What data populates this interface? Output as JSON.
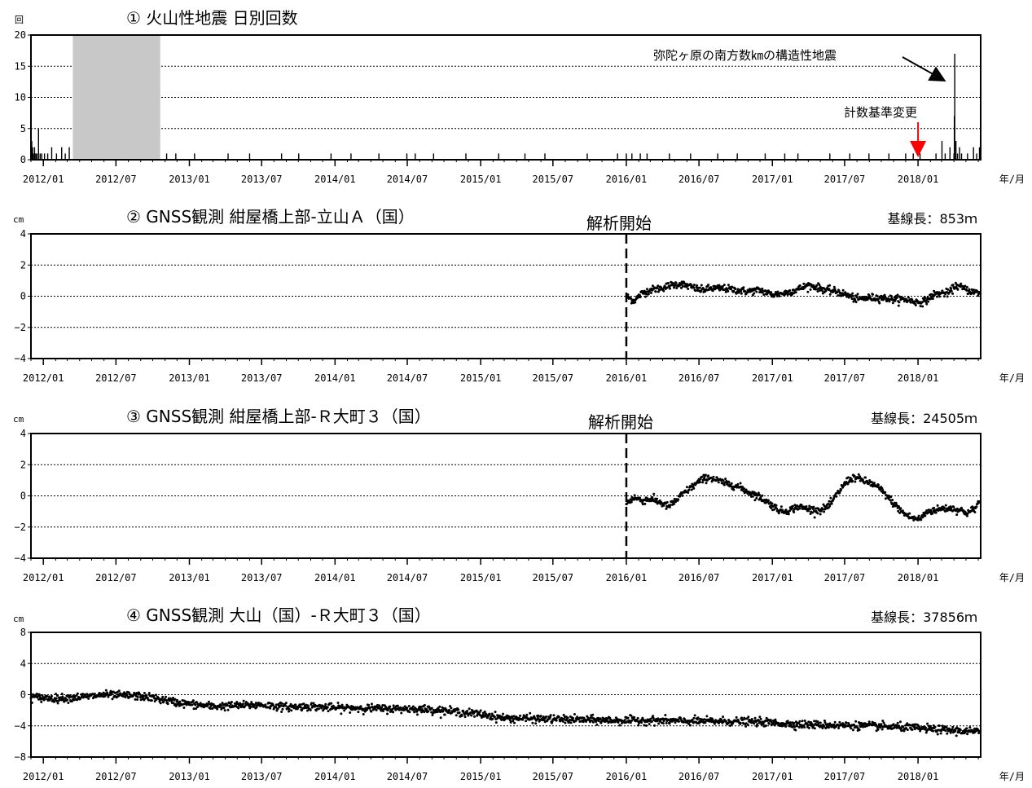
{
  "x_axis_ticks": [
    "2012/01",
    "2012/07",
    "2013/01",
    "2013/07",
    "2014/01",
    "2014/07",
    "2015/01",
    "2015/07",
    "2016/01",
    "2016/07",
    "2017/01",
    "2017/07",
    "2018/01"
  ],
  "x_unit": "年/月",
  "colors": {
    "gap_fill": "#c8c8c8",
    "arrow_red": "#ff0000",
    "ink": "#000000"
  },
  "chart_data": [
    {
      "type": "bar",
      "title": "① 火山性地震 日別回数",
      "ylabel": "回",
      "ylim": [
        0,
        20
      ],
      "yticks": [
        "20",
        "15",
        "10",
        "5",
        "0"
      ],
      "xlim": [
        "2011-12-01",
        "2018-06-07"
      ],
      "grid": true,
      "data_gap": [
        "2012-03-15",
        "2012-10-20"
      ],
      "series": [
        {
          "x": [
            "2011-12-03",
            "2011-12-05",
            "2011-12-07",
            "2011-12-10",
            "2011-12-13",
            "2011-12-16",
            "2011-12-20",
            "2011-12-24",
            "2011-12-28",
            "2012-01-04",
            "2012-01-12",
            "2012-01-22",
            "2012-02-03",
            "2012-02-16",
            "2012-02-25",
            "2012-03-06",
            "2012-11-05",
            "2012-11-28",
            "2013-01-14",
            "2013-04-08",
            "2013-06-01",
            "2013-08-20",
            "2013-10-02",
            "2013-12-22",
            "2014-02-10",
            "2014-04-21",
            "2014-06-30",
            "2014-07-21",
            "2014-09-05",
            "2014-11-25",
            "2015-02-15",
            "2015-04-22",
            "2015-06-11",
            "2015-09-25",
            "2015-12-10",
            "2016-01-01",
            "2016-01-15",
            "2016-02-05",
            "2016-02-22",
            "2016-04-18",
            "2016-06-10",
            "2016-08-17",
            "2016-10-05",
            "2016-12-14",
            "2017-02-01",
            "2017-03-06",
            "2017-05-25",
            "2017-07-14",
            "2017-08-31",
            "2017-10-20",
            "2017-12-01",
            "2017-12-20",
            "2018-01-06",
            "2018-02-15",
            "2018-03-02",
            "2018-03-10",
            "2018-03-22",
            "2018-04-01",
            "2018-04-02",
            "2018-04-03",
            "2018-04-06",
            "2018-04-10",
            "2018-04-15",
            "2018-04-20",
            "2018-05-05",
            "2018-05-20",
            "2018-05-28",
            "2018-06-04"
          ],
          "values": [
            3,
            2,
            1,
            2,
            1,
            1,
            5,
            1,
            1,
            1,
            1,
            2,
            1,
            2,
            1,
            2,
            1,
            1,
            1,
            1,
            1,
            1,
            1,
            1,
            1,
            1,
            1,
            1,
            1,
            1,
            1,
            1,
            1,
            1,
            1,
            1,
            1,
            1,
            1,
            1,
            1,
            1,
            1,
            1,
            1,
            1,
            1,
            1,
            1,
            1,
            1,
            1,
            1,
            1,
            3,
            1,
            2,
            1,
            7,
            17,
            3,
            1,
            2,
            1,
            1,
            2,
            1,
            2
          ]
        }
      ]
    },
    {
      "type": "scatter",
      "title": "② GNSS観測 紺屋橋上部-立山Ａ（国）",
      "ylabel": "cm",
      "ylim": [
        -4,
        4
      ],
      "yticks": [
        "4",
        "2",
        "0",
        "−2",
        "−4"
      ],
      "xlim": [
        "2011-12-01",
        "2018-06-07"
      ],
      "grid": true,
      "baseline_length": "基線長：853ｍ",
      "event_label": "解析開始",
      "event_date": "2016-01-01",
      "series": [
        {
          "x": [
            "2016-01-01",
            "2016-01-20",
            "2016-02-10",
            "2016-03-01",
            "2016-03-25",
            "2016-04-20",
            "2016-05-15",
            "2016-06-10",
            "2016-07-05",
            "2016-08-01",
            "2016-09-01",
            "2016-10-01",
            "2016-11-01",
            "2016-12-01",
            "2017-01-01",
            "2017-02-01",
            "2017-03-01",
            "2017-04-01",
            "2017-04-20",
            "2017-05-15",
            "2017-06-10",
            "2017-07-05",
            "2017-08-01",
            "2017-09-01",
            "2017-10-01",
            "2017-11-01",
            "2017-12-01",
            "2018-01-01",
            "2018-01-20",
            "2018-02-10",
            "2018-03-01",
            "2018-03-20",
            "2018-04-05",
            "2018-04-25",
            "2018-05-15",
            "2018-06-05"
          ],
          "values": [
            0.0,
            -0.3,
            0.2,
            0.4,
            0.5,
            0.7,
            0.8,
            0.6,
            0.4,
            0.5,
            0.5,
            0.4,
            0.3,
            0.4,
            0.1,
            0.2,
            0.4,
            0.7,
            0.6,
            0.4,
            0.3,
            0.1,
            -0.2,
            -0.1,
            -0.1,
            -0.2,
            -0.2,
            -0.4,
            -0.3,
            0.1,
            0.2,
            0.2,
            0.7,
            0.5,
            0.3,
            0.2
          ]
        }
      ]
    },
    {
      "type": "scatter",
      "title": "③ GNSS観測 紺屋橋上部-Ｒ大町３（国）",
      "ylabel": "cm",
      "ylim": [
        -4,
        4
      ],
      "yticks": [
        "4",
        "2",
        "0",
        "−2",
        "−4"
      ],
      "xlim": [
        "2011-12-01",
        "2018-06-07"
      ],
      "grid": true,
      "baseline_length": "基線長：24505ｍ",
      "event_label": "解析開始",
      "event_date": "2016-01-01",
      "series": [
        {
          "x": [
            "2016-01-01",
            "2016-01-20",
            "2016-02-10",
            "2016-03-01",
            "2016-03-25",
            "2016-04-15",
            "2016-05-05",
            "2016-05-25",
            "2016-06-15",
            "2016-07-05",
            "2016-07-25",
            "2016-08-15",
            "2016-09-05",
            "2016-09-25",
            "2016-10-15",
            "2016-11-05",
            "2016-11-25",
            "2016-12-15",
            "2017-01-05",
            "2017-01-25",
            "2017-02-15",
            "2017-03-05",
            "2017-03-25",
            "2017-04-15",
            "2017-05-05",
            "2017-05-25",
            "2017-06-15",
            "2017-07-05",
            "2017-07-25",
            "2017-08-15",
            "2017-09-05",
            "2017-09-25",
            "2017-10-15",
            "2017-11-05",
            "2017-11-25",
            "2017-12-15",
            "2018-01-05",
            "2018-01-25",
            "2018-02-15",
            "2018-03-05",
            "2018-03-25",
            "2018-04-15",
            "2018-05-05",
            "2018-05-25",
            "2018-06-05"
          ],
          "values": [
            -0.5,
            -0.1,
            -0.3,
            -0.2,
            -0.4,
            -0.7,
            -0.3,
            0.2,
            0.6,
            1.0,
            1.2,
            1.0,
            0.8,
            0.7,
            0.5,
            0.2,
            0.0,
            -0.3,
            -0.7,
            -1.0,
            -0.9,
            -0.7,
            -0.8,
            -0.9,
            -0.9,
            -0.6,
            0.2,
            0.9,
            1.2,
            1.0,
            0.8,
            0.5,
            0.0,
            -0.6,
            -1.1,
            -1.4,
            -1.5,
            -1.0,
            -0.9,
            -0.8,
            -0.8,
            -0.9,
            -1.1,
            -0.8,
            -0.3
          ]
        }
      ]
    },
    {
      "type": "scatter",
      "title": "④ GNSS観測 大山（国）-Ｒ大町３（国）",
      "ylabel": "cm",
      "ylim": [
        -8,
        8
      ],
      "yticks": [
        "8",
        "4",
        "0",
        "−4",
        "−8"
      ],
      "xlim": [
        "2011-12-01",
        "2018-06-07"
      ],
      "grid": true,
      "baseline_length": "基線長：37856ｍ",
      "series": [
        {
          "x": [
            "2011-12-01",
            "2012-01-01",
            "2012-02-01",
            "2012-03-01",
            "2012-04-01",
            "2012-05-01",
            "2012-06-01",
            "2012-07-01",
            "2012-08-01",
            "2012-09-01",
            "2012-10-01",
            "2012-11-01",
            "2012-12-01",
            "2013-01-01",
            "2013-03-01",
            "2013-05-01",
            "2013-07-01",
            "2013-09-01",
            "2013-11-01",
            "2014-01-01",
            "2014-03-01",
            "2014-05-01",
            "2014-07-01",
            "2014-09-01",
            "2014-11-01",
            "2015-01-01",
            "2015-03-01",
            "2015-06-01",
            "2015-09-01",
            "2015-12-01",
            "2016-03-01",
            "2016-06-01",
            "2016-09-01",
            "2016-12-01",
            "2017-03-01",
            "2017-06-01",
            "2017-09-01",
            "2017-12-01",
            "2018-03-01",
            "2018-06-05"
          ],
          "values": [
            -0.3,
            -0.4,
            -0.5,
            -0.4,
            -0.3,
            -0.2,
            0.0,
            -0.1,
            -0.1,
            -0.2,
            -0.4,
            -0.7,
            -1.0,
            -1.2,
            -1.5,
            -1.4,
            -1.3,
            -1.6,
            -1.5,
            -1.7,
            -1.7,
            -1.8,
            -1.8,
            -1.9,
            -2.2,
            -2.5,
            -3.0,
            -3.1,
            -3.2,
            -3.3,
            -3.3,
            -3.4,
            -3.4,
            -3.5,
            -3.8,
            -3.9,
            -4.0,
            -4.2,
            -4.5,
            -4.8
          ]
        }
      ]
    }
  ],
  "annotations": {
    "tectonic_label": "弥陀ヶ原の南方数㎞の構造性地震",
    "count_change_label": "計数基準変更",
    "count_change_date": "2018-01-01"
  }
}
